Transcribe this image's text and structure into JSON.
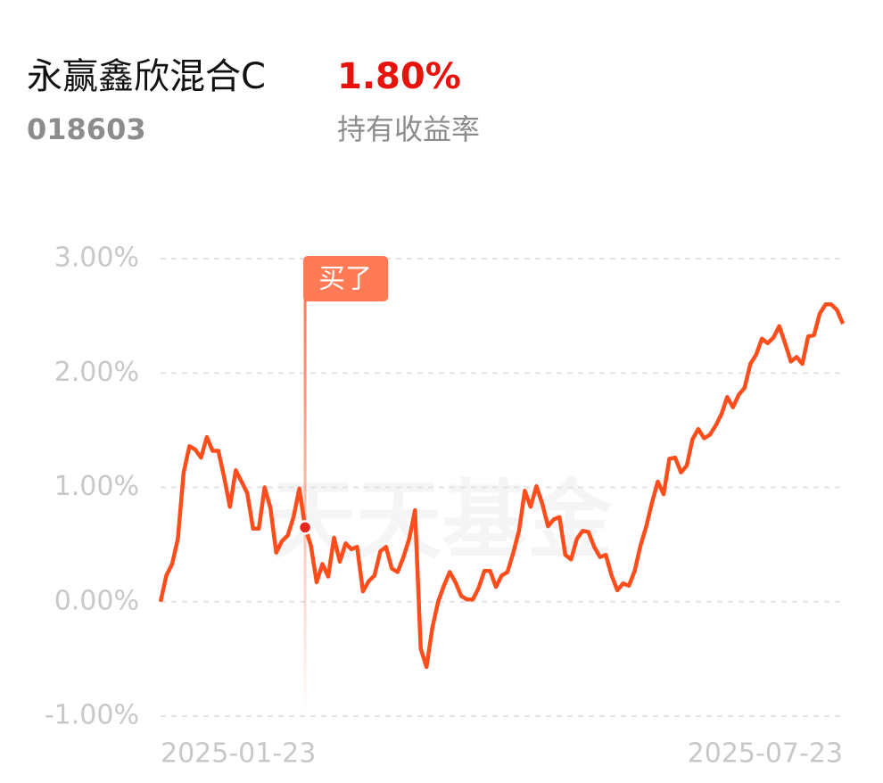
{
  "header": {
    "fund_name": "永赢鑫欣混合C",
    "holding_return": "1.80%",
    "fund_code": "018603",
    "return_label": "持有收益率"
  },
  "chart_data": {
    "type": "line",
    "watermark": "天天基金",
    "categories": [
      "2025-01-23",
      null,
      null,
      null,
      null,
      null,
      null,
      null,
      null,
      null,
      null,
      null,
      null,
      null,
      null,
      null,
      null,
      null,
      null,
      null,
      null,
      null,
      null,
      null,
      null,
      null,
      null,
      null,
      null,
      null,
      null,
      null,
      null,
      null,
      null,
      null,
      null,
      null,
      null,
      null,
      null,
      null,
      null,
      null,
      null,
      null,
      null,
      null,
      null,
      null,
      null,
      null,
      null,
      null,
      null,
      null,
      null,
      null,
      null,
      null,
      null,
      null,
      null,
      null,
      null,
      null,
      null,
      null,
      null,
      null,
      null,
      null,
      null,
      null,
      null,
      null,
      null,
      null,
      null,
      null,
      null,
      null,
      null,
      null,
      null,
      null,
      null,
      null,
      null,
      null,
      null,
      null,
      null,
      null,
      null,
      null,
      null,
      null,
      null,
      null,
      null,
      null,
      null,
      null,
      null,
      null,
      null,
      null,
      null,
      null,
      null,
      null,
      null,
      null,
      null,
      null,
      null,
      null,
      "2025-07-23"
    ],
    "series": [
      {
        "color": "#ff4d1c",
        "values": [
          0,
          0.23,
          0.33,
          0.55,
          1.13,
          1.36,
          1.33,
          1.26,
          1.44,
          1.32,
          1.32,
          1.09,
          0.83,
          1.15,
          1.05,
          0.95,
          0.64,
          0.64,
          1.0,
          0.82,
          0.43,
          0.53,
          0.58,
          0.74,
          0.99,
          0.65,
          0.49,
          0.17,
          0.33,
          0.22,
          0.56,
          0.35,
          0.51,
          0.46,
          0.48,
          0.09,
          0.18,
          0.23,
          0.44,
          0.48,
          0.29,
          0.26,
          0.39,
          0.55,
          0.8,
          -0.41,
          -0.57,
          -0.23,
          0,
          0.14,
          0.26,
          0.17,
          0.05,
          0.02,
          0.02,
          0.12,
          0.27,
          0.27,
          0.13,
          0.23,
          0.26,
          0.43,
          0.62,
          0.97,
          0.83,
          1.01,
          0.86,
          0.66,
          0.72,
          0.74,
          0.41,
          0.37,
          0.55,
          0.62,
          0.61,
          0.48,
          0.39,
          0.41,
          0.23,
          0.1,
          0.16,
          0.14,
          0.27,
          0.49,
          0.66,
          0.87,
          1.05,
          0.94,
          1.25,
          1.26,
          1.13,
          1.19,
          1.42,
          1.51,
          1.43,
          1.46,
          1.54,
          1.64,
          1.79,
          1.7,
          1.81,
          1.87,
          2.08,
          2.16,
          2.3,
          2.26,
          2.31,
          2.41,
          2.26,
          2.1,
          2.14,
          2.08,
          2.32,
          2.33,
          2.52,
          2.6,
          2.6,
          2.55,
          2.43
        ]
      }
    ],
    "ylim": [
      -1,
      3
    ],
    "yticks": [
      {
        "value": 3,
        "label": "3.00%"
      },
      {
        "value": 2,
        "label": "2.00%"
      },
      {
        "value": 1,
        "label": "1.00%"
      },
      {
        "value": 0,
        "label": "0.00%"
      },
      {
        "value": -1,
        "label": "-1.00%"
      }
    ],
    "grid": true,
    "annotations": [
      {
        "label": "买了",
        "index": 25,
        "color": "#ff7a55"
      }
    ]
  }
}
